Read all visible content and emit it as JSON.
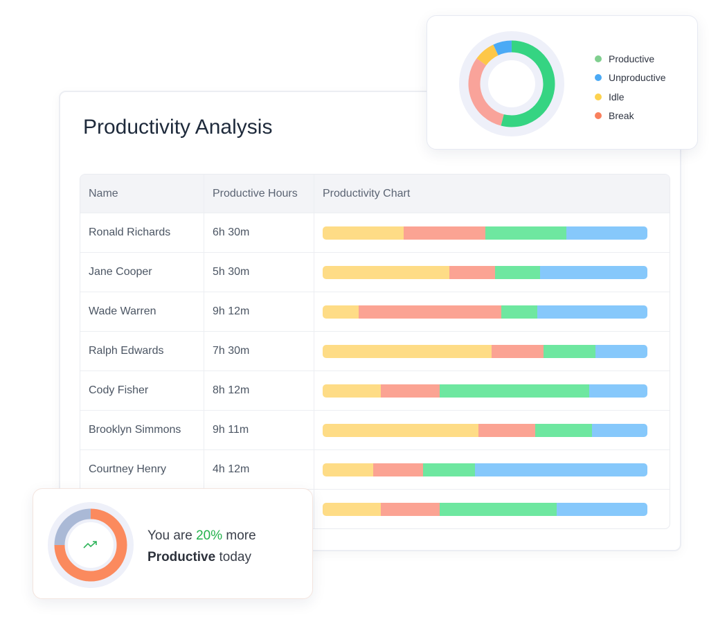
{
  "title": "Productivity Analysis",
  "columns": [
    "Name",
    "Productive Hours",
    "Productivity Chart"
  ],
  "colors": {
    "idle": "#fedc86",
    "break": "#fba393",
    "productive": "#6ee7a0",
    "unproductive": "#86c8fb"
  },
  "rows": [
    {
      "name": "Ronald Richards",
      "hours": "6h 30m",
      "segments": [
        25,
        25,
        25,
        25
      ]
    },
    {
      "name": "Jane Cooper",
      "hours": "5h 30m",
      "segments": [
        39,
        14,
        14,
        33
      ]
    },
    {
      "name": "Wade Warren",
      "hours": "9h 12m",
      "segments": [
        11,
        44,
        11,
        34
      ]
    },
    {
      "name": "Ralph Edwards",
      "hours": "7h 30m",
      "segments": [
        52,
        16,
        16,
        16
      ]
    },
    {
      "name": "Cody Fisher",
      "hours": "8h 12m",
      "segments": [
        18,
        18,
        46,
        18
      ]
    },
    {
      "name": "Brooklyn Simmons",
      "hours": "9h 11m",
      "segments": [
        48,
        17.5,
        17.5,
        17
      ]
    },
    {
      "name": "Courtney Henry",
      "hours": "4h 12m",
      "segments": [
        15.5,
        15.5,
        16,
        53
      ]
    },
    {
      "name": "",
      "hours": "",
      "segments": [
        18,
        18,
        36,
        28
      ]
    }
  ],
  "donut": {
    "legend": [
      {
        "label": "Productive",
        "color": "#80cf8f"
      },
      {
        "label": "Unproductive",
        "color": "#4baaf5"
      },
      {
        "label": "Idle",
        "color": "#fdd24f"
      },
      {
        "label": "Break",
        "color": "#f9805d"
      }
    ],
    "slices": [
      {
        "label": "Productive",
        "value": 54,
        "color": "#35d482"
      },
      {
        "label": "Break",
        "value": 31,
        "color": "#f9a39a"
      },
      {
        "label": "Idle",
        "value": 8,
        "color": "#fdc748"
      },
      {
        "label": "Unproductive",
        "value": 7,
        "color": "#4baaf5"
      }
    ]
  },
  "summary": {
    "prefix": "You are ",
    "percent": "20%",
    "suffix": " more",
    "bold": "Productive",
    "tail": " today",
    "progress": 75,
    "icon": "trending-up-icon"
  }
}
